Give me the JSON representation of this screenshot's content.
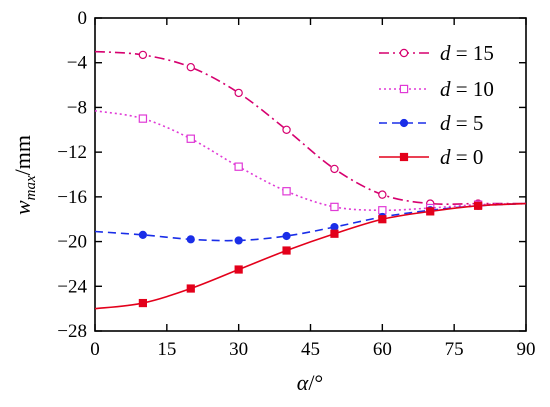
{
  "chart_data": {
    "type": "line",
    "xlabel": {
      "symbol": "α",
      "unit": "/°"
    },
    "ylabel": {
      "symbol": "w",
      "subscript": "max",
      "unit": "/mm"
    },
    "xlim": [
      0,
      90
    ],
    "ylim": [
      -28,
      0
    ],
    "xticks": [
      0,
      15,
      30,
      45,
      60,
      75,
      90
    ],
    "yticks": [
      0,
      -4,
      -8,
      -12,
      -16,
      -20,
      -24,
      -28
    ],
    "grid": false,
    "legend_position": "top-right",
    "series": [
      {
        "name": "d = 15",
        "legend": {
          "var": "d",
          "value": "15"
        },
        "color": "#d6006f",
        "line_style": "dash-dot",
        "marker": "open-circle",
        "x": [
          0,
          10,
          20,
          30,
          40,
          50,
          60,
          70,
          80,
          90
        ],
        "y": [
          -3.0,
          -3.3,
          -4.4,
          -6.7,
          -10.0,
          -13.5,
          -15.8,
          -16.6,
          -16.6,
          -16.6
        ]
      },
      {
        "name": "d = 10",
        "legend": {
          "var": "d",
          "value": "10"
        },
        "color": "#e03ad6",
        "line_style": "dotted",
        "marker": "open-square",
        "x": [
          0,
          10,
          20,
          30,
          40,
          50,
          60,
          70,
          80,
          90
        ],
        "y": [
          -8.3,
          -9.0,
          -10.8,
          -13.3,
          -15.5,
          -16.9,
          -17.2,
          -17.0,
          -16.7,
          -16.6
        ]
      },
      {
        "name": "d = 5",
        "legend": {
          "var": "d",
          "value": "5"
        },
        "color": "#1a2ee8",
        "line_style": "dashed",
        "marker": "filled-circle",
        "x": [
          0,
          10,
          20,
          30,
          40,
          50,
          60,
          70,
          80,
          90
        ],
        "y": [
          -19.1,
          -19.4,
          -19.8,
          -19.9,
          -19.5,
          -18.7,
          -17.8,
          -17.2,
          -16.8,
          -16.6
        ]
      },
      {
        "name": "d = 0",
        "legend": {
          "var": "d",
          "value": "0"
        },
        "color": "#e3001b",
        "line_style": "solid",
        "marker": "filled-square",
        "x": [
          0,
          10,
          20,
          30,
          40,
          50,
          60,
          70,
          80,
          90
        ],
        "y": [
          -26.0,
          -25.5,
          -24.2,
          -22.5,
          -20.8,
          -19.3,
          -18.0,
          -17.3,
          -16.8,
          -16.6
        ]
      }
    ]
  }
}
